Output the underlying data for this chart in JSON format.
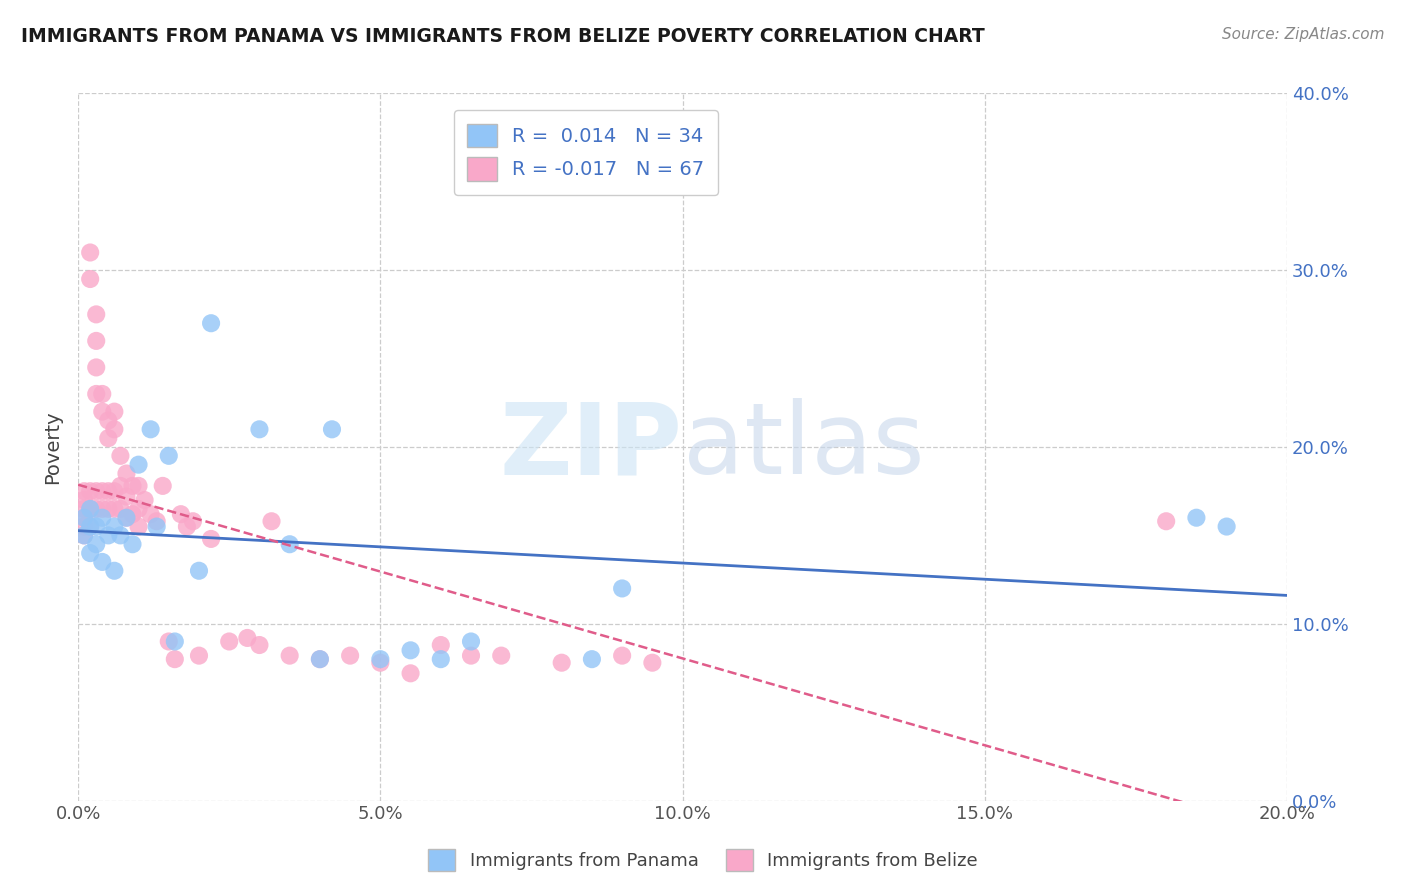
{
  "title": "IMMIGRANTS FROM PANAMA VS IMMIGRANTS FROM BELIZE POVERTY CORRELATION CHART",
  "source": "Source: ZipAtlas.com",
  "ylabel": "Poverty",
  "legend_label1": "Immigrants from Panama",
  "legend_label2": "Immigrants from Belize",
  "xlim": [
    0.0,
    0.2
  ],
  "ylim": [
    0.0,
    0.4
  ],
  "xticks": [
    0.0,
    0.05,
    0.1,
    0.15,
    0.2
  ],
  "yticks": [
    0.0,
    0.1,
    0.2,
    0.3,
    0.4
  ],
  "xtick_labels": [
    "0.0%",
    "5.0%",
    "10.0%",
    "15.0%",
    "20.0%"
  ],
  "ytick_labels_right": [
    "0.0%",
    "10.0%",
    "20.0%",
    "30.0%",
    "40.0%"
  ],
  "color_panama": "#92c5f7",
  "color_belize": "#f9a8c9",
  "color_line_panama": "#4472c4",
  "color_line_belize": "#e05c8a",
  "R_panama": 0.014,
  "N_panama": 34,
  "R_belize": -0.017,
  "N_belize": 67,
  "panama_x": [
    0.001,
    0.001,
    0.002,
    0.002,
    0.002,
    0.003,
    0.003,
    0.004,
    0.004,
    0.005,
    0.006,
    0.006,
    0.007,
    0.008,
    0.009,
    0.01,
    0.012,
    0.013,
    0.015,
    0.016,
    0.02,
    0.022,
    0.03,
    0.035,
    0.04,
    0.042,
    0.05,
    0.055,
    0.06,
    0.065,
    0.085,
    0.09,
    0.185,
    0.19
  ],
  "panama_y": [
    0.16,
    0.15,
    0.155,
    0.165,
    0.14,
    0.155,
    0.145,
    0.16,
    0.135,
    0.15,
    0.155,
    0.13,
    0.15,
    0.16,
    0.145,
    0.19,
    0.21,
    0.155,
    0.195,
    0.09,
    0.13,
    0.27,
    0.21,
    0.145,
    0.08,
    0.21,
    0.08,
    0.085,
    0.08,
    0.09,
    0.08,
    0.12,
    0.16,
    0.155
  ],
  "belize_x": [
    0.001,
    0.001,
    0.001,
    0.001,
    0.001,
    0.001,
    0.002,
    0.002,
    0.002,
    0.002,
    0.002,
    0.003,
    0.003,
    0.003,
    0.003,
    0.003,
    0.003,
    0.004,
    0.004,
    0.004,
    0.004,
    0.005,
    0.005,
    0.005,
    0.005,
    0.006,
    0.006,
    0.006,
    0.006,
    0.007,
    0.007,
    0.007,
    0.008,
    0.008,
    0.008,
    0.009,
    0.009,
    0.01,
    0.01,
    0.01,
    0.011,
    0.012,
    0.013,
    0.014,
    0.015,
    0.016,
    0.017,
    0.018,
    0.019,
    0.02,
    0.022,
    0.025,
    0.028,
    0.03,
    0.032,
    0.035,
    0.04,
    0.045,
    0.05,
    0.055,
    0.06,
    0.065,
    0.07,
    0.08,
    0.09,
    0.095,
    0.18
  ],
  "belize_y": [
    0.175,
    0.17,
    0.165,
    0.16,
    0.155,
    0.15,
    0.31,
    0.295,
    0.175,
    0.165,
    0.155,
    0.275,
    0.26,
    0.245,
    0.23,
    0.175,
    0.165,
    0.23,
    0.22,
    0.175,
    0.165,
    0.215,
    0.205,
    0.175,
    0.165,
    0.22,
    0.21,
    0.175,
    0.165,
    0.195,
    0.178,
    0.165,
    0.185,
    0.172,
    0.16,
    0.178,
    0.162,
    0.178,
    0.165,
    0.155,
    0.17,
    0.162,
    0.158,
    0.178,
    0.09,
    0.08,
    0.162,
    0.155,
    0.158,
    0.082,
    0.148,
    0.09,
    0.092,
    0.088,
    0.158,
    0.082,
    0.08,
    0.082,
    0.078,
    0.072,
    0.088,
    0.082,
    0.082,
    0.078,
    0.082,
    0.078,
    0.158
  ]
}
